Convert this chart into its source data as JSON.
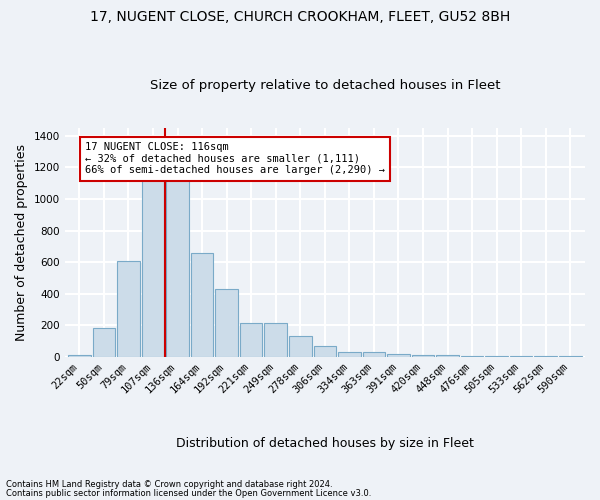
{
  "title1": "17, NUGENT CLOSE, CHURCH CROOKHAM, FLEET, GU52 8BH",
  "title2": "Size of property relative to detached houses in Fleet",
  "xlabel": "Distribution of detached houses by size in Fleet",
  "ylabel": "Number of detached properties",
  "categories": [
    "22sqm",
    "50sqm",
    "79sqm",
    "107sqm",
    "136sqm",
    "164sqm",
    "192sqm",
    "221sqm",
    "249sqm",
    "278sqm",
    "306sqm",
    "334sqm",
    "363sqm",
    "391sqm",
    "420sqm",
    "448sqm",
    "476sqm",
    "505sqm",
    "533sqm",
    "562sqm",
    "590sqm"
  ],
  "values": [
    15,
    185,
    610,
    1130,
    1130,
    660,
    430,
    215,
    215,
    130,
    70,
    30,
    30,
    20,
    15,
    10,
    5,
    5,
    3,
    3,
    3
  ],
  "bar_color": "#ccdce9",
  "bar_edge_color": "#7aaac8",
  "vline_color": "#cc0000",
  "annotation_text": "17 NUGENT CLOSE: 116sqm\n← 32% of detached houses are smaller (1,111)\n66% of semi-detached houses are larger (2,290) →",
  "annotation_box_color": "white",
  "annotation_box_edge_color": "#cc0000",
  "ylim": [
    0,
    1450
  ],
  "yticks": [
    0,
    200,
    400,
    600,
    800,
    1000,
    1200,
    1400
  ],
  "footnote1": "Contains HM Land Registry data © Crown copyright and database right 2024.",
  "footnote2": "Contains public sector information licensed under the Open Government Licence v3.0.",
  "bg_color": "#eef2f7",
  "plot_bg_color": "#eef2f7",
  "grid_color": "white",
  "title1_fontsize": 10,
  "title2_fontsize": 9.5,
  "tick_fontsize": 7.5,
  "label_fontsize": 9
}
